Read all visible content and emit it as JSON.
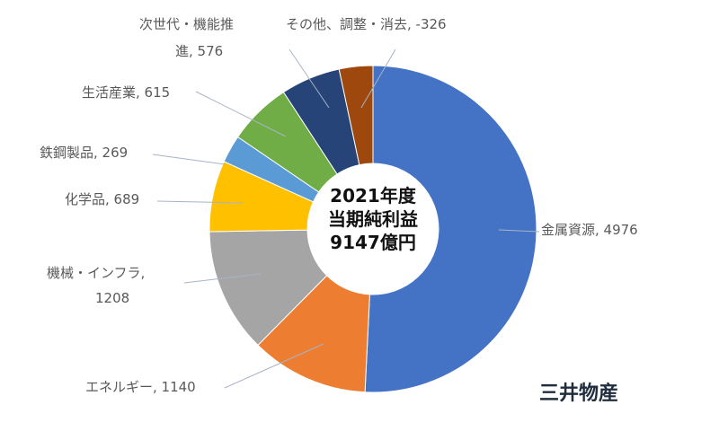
{
  "chart_data": {
    "type": "pie",
    "variant": "donut",
    "center": {
      "line1": "2021年度",
      "line2": "当期純利益",
      "line3": "9147億円"
    },
    "company": "三井物産",
    "slices": [
      {
        "name": "金属資源",
        "label_text": "金属資源, 4976",
        "value": 4976,
        "color": "#4472c4"
      },
      {
        "name": "エネルギー",
        "label_text": "エネルギー, 1140",
        "value": 1140,
        "color": "#ed7d31"
      },
      {
        "name": "機械・インフラ",
        "label_text": "機械・インフラ, 1208",
        "label_line1": "機械・インフラ,",
        "label_line2": "1208",
        "value": 1208,
        "color": "#a5a5a5"
      },
      {
        "name": "化学品",
        "label_text": "化学品, 689",
        "value": 689,
        "color": "#ffc000"
      },
      {
        "name": "鉄鋼製品",
        "label_text": "鉄鋼製品, 269",
        "value": 269,
        "color": "#5b9bd5"
      },
      {
        "name": "生活産業",
        "label_text": "生活産業, 615",
        "value": 615,
        "color": "#70ad47"
      },
      {
        "name": "次世代・機能推進",
        "label_text": "次世代・機能推進, 576",
        "label_line1": "次世代・機能推",
        "label_line2": "進, 576",
        "value": 576,
        "color": "#264478"
      },
      {
        "name": "その他、調整・消去",
        "label_text": "その他、調整・消去, -326",
        "value": -326,
        "color": "#9e480e"
      }
    ]
  }
}
